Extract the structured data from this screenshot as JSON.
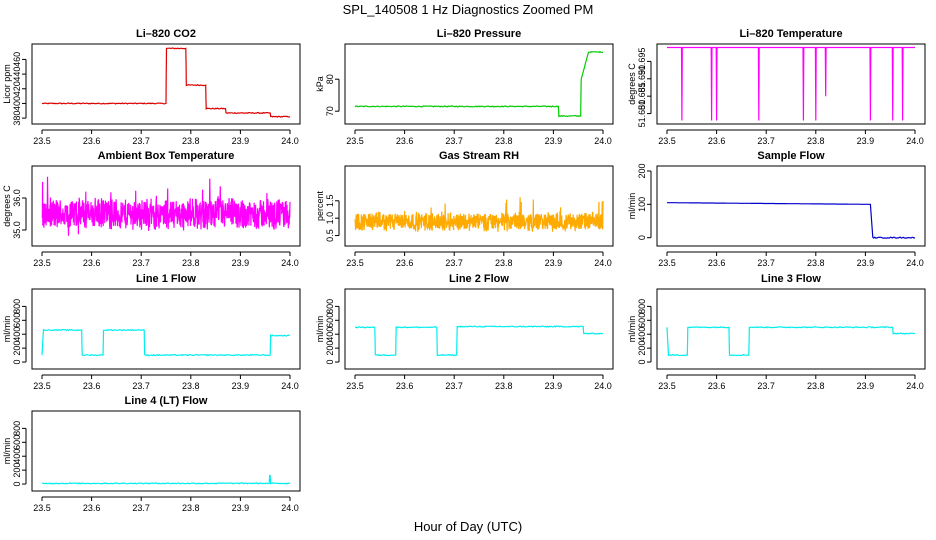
{
  "title": "SPL_140508  1 Hz Diagnostics Zoomed PM",
  "xlabel": "Hour of Day (UTC)",
  "chart_data": [
    {
      "type": "line",
      "title": "Li–820 CO2",
      "ylabel": "Licor ppm",
      "color": "#dd0000",
      "xlim": [
        23.5,
        24.0
      ],
      "xticks": [
        "23.5",
        "23.6",
        "23.7",
        "23.8",
        "23.9",
        "24.0"
      ],
      "ylim": [
        372,
        481
      ],
      "yticks": [
        380,
        400,
        420,
        440,
        460
      ],
      "x": [
        23.5,
        23.75,
        23.751,
        23.79,
        23.791,
        23.83,
        23.831,
        23.87,
        23.871,
        23.96,
        23.961,
        24.0
      ],
      "y": [
        400,
        400,
        475,
        475,
        425,
        425,
        393,
        393,
        387,
        387,
        382,
        382
      ]
    },
    {
      "type": "line",
      "title": "Li–820 Pressure",
      "ylabel": "kPa",
      "color": "#00cc00",
      "xlim": [
        23.5,
        24.0
      ],
      "xticks": [
        "23.5",
        "23.6",
        "23.7",
        "23.8",
        "23.9",
        "24.0"
      ],
      "ylim": [
        66,
        91
      ],
      "yticks": [
        70,
        80
      ],
      "x": [
        23.5,
        23.91,
        23.911,
        23.955,
        23.956,
        23.97,
        23.971,
        24.0
      ],
      "y": [
        71.5,
        71.5,
        68.5,
        68.5,
        80,
        88,
        88.5,
        88.5
      ]
    },
    {
      "type": "line",
      "title": "Li–820 Temperature",
      "ylabel": "degrees C",
      "color": "#ff00ff",
      "xlim": [
        23.5,
        24.0
      ],
      "xticks": [
        "23.5",
        "23.6",
        "23.7",
        "23.8",
        "23.9",
        "24.0"
      ],
      "ylim": [
        51.677,
        51.7
      ],
      "yticks": [
        51.68,
        51.685,
        51.69,
        51.695
      ],
      "baseline": 51.699,
      "dip_x": [
        23.53,
        23.59,
        23.6,
        23.685,
        23.775,
        23.8,
        23.82,
        23.91,
        23.955,
        23.975
      ],
      "dip_y": [
        51.678,
        51.678,
        51.678,
        51.678,
        51.678,
        51.678,
        51.685,
        51.678,
        51.678,
        51.678
      ]
    },
    {
      "type": "line",
      "title": "Ambient Box Temperature",
      "ylabel": "degrees C",
      "color": "#ff00ff",
      "xlim": [
        23.5,
        24.0
      ],
      "xticks": [
        "23.5",
        "23.6",
        "23.7",
        "23.8",
        "23.9",
        "24.0"
      ],
      "ylim": [
        34.5,
        37.0
      ],
      "yticks": [
        35.0,
        36.0
      ],
      "center": 35.5,
      "spread": 0.55
    },
    {
      "type": "line",
      "title": "Gas Stream RH",
      "ylabel": "percent",
      "color": "#ffaa00",
      "xlim": [
        23.5,
        24.0
      ],
      "xticks": [
        "23.5",
        "23.6",
        "23.7",
        "23.8",
        "23.9",
        "24.0"
      ],
      "ylim": [
        0.2,
        2.5
      ],
      "yticks": [
        0.5,
        1.0,
        1.5
      ],
      "center": 0.9,
      "spread": 0.3
    },
    {
      "type": "line",
      "title": "Sample Flow",
      "ylabel": "ml/min",
      "color": "#0000cc",
      "xlim": [
        23.5,
        24.0
      ],
      "xticks": [
        "23.5",
        "23.6",
        "23.7",
        "23.8",
        "23.9",
        "24.0"
      ],
      "ylim": [
        -25,
        215
      ],
      "yticks": [
        0,
        100,
        200
      ],
      "x": [
        23.5,
        23.91,
        23.915,
        24.0
      ],
      "y": [
        105,
        100,
        0,
        0
      ]
    },
    {
      "type": "line",
      "title": "Line 1 Flow",
      "ylabel": "ml/min",
      "color": "#00eeee",
      "xlim": [
        23.5,
        24.0
      ],
      "xticks": [
        "23.5",
        "23.6",
        "23.7",
        "23.8",
        "23.9",
        "24.0"
      ],
      "ylim": [
        -100,
        1050
      ],
      "yticks": [
        0,
        200,
        400,
        600,
        800
      ],
      "x": [
        23.5,
        23.503,
        23.58,
        23.581,
        23.623,
        23.624,
        23.706,
        23.707,
        23.96,
        23.961,
        24.0
      ],
      "y": [
        100,
        460,
        460,
        100,
        100,
        460,
        460,
        100,
        100,
        380,
        380
      ]
    },
    {
      "type": "line",
      "title": "Line 2 Flow",
      "ylabel": "ml/min",
      "color": "#00eeee",
      "xlim": [
        23.5,
        24.0
      ],
      "xticks": [
        "23.5",
        "23.6",
        "23.7",
        "23.8",
        "23.9",
        "24.0"
      ],
      "ylim": [
        -100,
        1050
      ],
      "yticks": [
        0,
        200,
        400,
        600,
        800
      ],
      "x": [
        23.5,
        23.54,
        23.541,
        23.582,
        23.583,
        23.665,
        23.666,
        23.705,
        23.706,
        23.96,
        23.961,
        24.0
      ],
      "y": [
        500,
        500,
        100,
        100,
        500,
        500,
        100,
        100,
        510,
        510,
        410,
        410
      ]
    },
    {
      "type": "line",
      "title": "Line 3 Flow",
      "ylabel": "ml/min",
      "color": "#00eeee",
      "xlim": [
        23.5,
        24.0
      ],
      "xticks": [
        "23.5",
        "23.6",
        "23.7",
        "23.8",
        "23.9",
        "24.0"
      ],
      "ylim": [
        -100,
        1050
      ],
      "yticks": [
        0,
        200,
        400,
        600,
        800
      ],
      "x": [
        23.5,
        23.503,
        23.541,
        23.542,
        23.625,
        23.626,
        23.665,
        23.666,
        23.955,
        23.956,
        24.0
      ],
      "y": [
        500,
        100,
        100,
        500,
        500,
        100,
        100,
        500,
        500,
        410,
        410
      ]
    },
    {
      "type": "line",
      "title": "Line 4 (LT) Flow",
      "ylabel": "ml/min",
      "color": "#00eeee",
      "xlim": [
        23.5,
        24.0
      ],
      "xticks": [
        "23.5",
        "23.6",
        "23.7",
        "23.8",
        "23.9",
        "24.0"
      ],
      "ylim": [
        -100,
        1050
      ],
      "yticks": [
        0,
        200,
        400,
        600,
        800
      ],
      "x": [
        23.5,
        23.958,
        23.959,
        23.96,
        23.961,
        24.0
      ],
      "y": [
        10,
        10,
        120,
        120,
        10,
        10
      ]
    }
  ]
}
